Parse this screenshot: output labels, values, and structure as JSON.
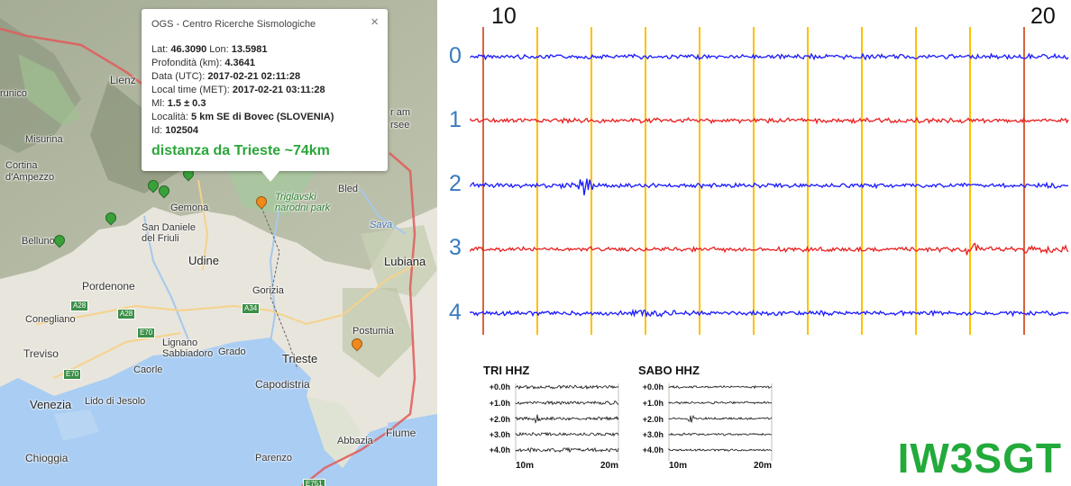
{
  "map": {
    "popup": {
      "title": "OGS - Centro Ricerche Sismologiche",
      "close": "×",
      "lat_label": "Lat:",
      "lat": "46.3090",
      "lon_label": "Lon:",
      "lon": "13.5981",
      "depth_label": "Profondità (km):",
      "depth": "4.3641",
      "utc_label": "Data (UTC):",
      "utc": "2017-02-21 02:11:28",
      "local_label": "Local time (MET):",
      "local": "2017-02-21 03:11:28",
      "ml_label": "Ml:",
      "ml": "1.5 ± 0.3",
      "locality_label": "Località:",
      "locality": "5 km SE di Bovec (SLOVENIA)",
      "id_label": "Id:",
      "id": "102504",
      "distance": "distanza da Trieste ~74km"
    },
    "places": {
      "lienz": "Lienz",
      "brunico": "runico",
      "misurina": "Misurina",
      "cortina": "Cortina\nd'Ampezzo",
      "belluno": "Belluno",
      "gemona": "Gemona",
      "sandaniele": "San Daniele\ndel Friuli",
      "udine": "Udine",
      "pordenone": "Pordenone",
      "conegliano": "Conegliano",
      "treviso": "Treviso",
      "venezia": "Venezia",
      "chioggia": "Chioggia",
      "lidojesolo": "Lido di Jesolo",
      "caorle": "Caorle",
      "lignano": "Lignano\nSabbiadoro",
      "grado": "Grado",
      "gorizia": "Gorizia",
      "trieste": "Trieste",
      "capodistria": "Capodistria",
      "postumia": "Postumia",
      "lubiana": "Lubiana",
      "bled": "Bled",
      "abbazia": "Abbazia",
      "fiume": "Fiume",
      "parenzo": "Parenzo",
      "amsee": "r am\nrsee",
      "triglav": "Triglavski\nnarodni park",
      "sava": "Sava"
    },
    "roads": {
      "a28a": "A28",
      "a28b": "A28",
      "e70a": "E70",
      "e70b": "E70",
      "a34": "A34",
      "e751": "E751"
    },
    "pin_colors": {
      "green": "#3aa13a",
      "orange": "#f08a1c"
    }
  },
  "seismo": {
    "time_labels": [
      "10",
      "20"
    ],
    "channel_labels": [
      "0",
      "1",
      "2",
      "3",
      "4"
    ],
    "trace_colors": [
      "#1a1aff",
      "#e82020",
      "#1a1aff",
      "#e82020",
      "#1a1aff"
    ],
    "minute_line_color": "#ffc000",
    "mark_line_color": "#c83200"
  },
  "mini_plots": [
    {
      "title": "TRI HHZ",
      "rows": [
        "+0.0h",
        "+1.0h",
        "+2.0h",
        "+3.0h",
        "+4.0h"
      ],
      "x_ticks": [
        "10m",
        "20m"
      ]
    },
    {
      "title": "SABO HHZ",
      "rows": [
        "+0.0h",
        "+1.0h",
        "+2.0h",
        "+3.0h",
        "+4.0h"
      ],
      "x_ticks": [
        "10m",
        "20m"
      ]
    }
  ],
  "callsign": "IW3SGT"
}
